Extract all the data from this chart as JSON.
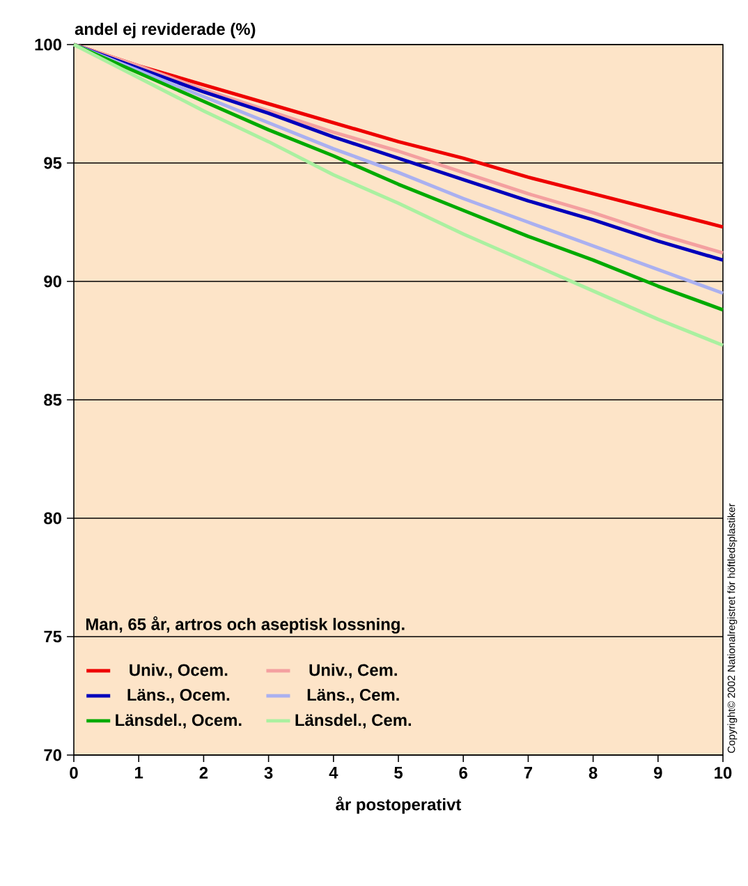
{
  "chart_data": {
    "type": "line",
    "ylabel": "andel ej reviderade (%)",
    "xlabel": "år postoperativt",
    "legend_title": "Man, 65 år, artros och aseptisk lossning.",
    "legend": "bottom left",
    "grid": "y",
    "marker": "none",
    "line_style": "solid",
    "x": [
      0,
      1,
      2,
      3,
      4,
      5,
      6,
      7,
      8,
      9,
      10
    ],
    "xlim": [
      0,
      10
    ],
    "xticks": [
      0,
      1,
      2,
      3,
      4,
      5,
      6,
      7,
      8,
      9,
      10
    ],
    "ylim": [
      70,
      100
    ],
    "yticks": [
      70,
      75,
      80,
      85,
      90,
      95,
      100
    ],
    "series": [
      {
        "name": "Univ., Ocem.",
        "color": "#ee0000",
        "values": [
          100,
          99.1,
          98.3,
          97.5,
          96.7,
          95.9,
          95.2,
          94.4,
          93.7,
          93.0,
          92.3
        ]
      },
      {
        "name": "Univ., Cem.",
        "color": "#f4a0a0",
        "values": [
          100,
          99.1,
          98.1,
          97.2,
          96.3,
          95.5,
          94.6,
          93.7,
          92.9,
          92.0,
          91.2
        ]
      },
      {
        "name": "Läns., Ocem.",
        "color": "#0000bb",
        "values": [
          100,
          99.0,
          98.0,
          97.1,
          96.1,
          95.2,
          94.3,
          93.4,
          92.6,
          91.7,
          90.9
        ]
      },
      {
        "name": "Läns., Cem.",
        "color": "#aab0f0",
        "values": [
          100,
          98.9,
          97.8,
          96.7,
          95.6,
          94.6,
          93.5,
          92.5,
          91.5,
          90.5,
          89.5
        ]
      },
      {
        "name": "Länsdel., Ocem.",
        "color": "#00aa00",
        "values": [
          100,
          98.8,
          97.6,
          96.4,
          95.3,
          94.1,
          93.0,
          91.9,
          90.9,
          89.8,
          88.8
        ]
      },
      {
        "name": "Länsdel., Cem.",
        "color": "#aaf0a0",
        "values": [
          100,
          98.6,
          97.2,
          95.9,
          94.5,
          93.3,
          92.0,
          90.8,
          89.6,
          88.4,
          87.3
        ]
      }
    ],
    "annotations": [
      "Copyright© 2002 Nationalregistret för höftledsplastiker"
    ]
  }
}
